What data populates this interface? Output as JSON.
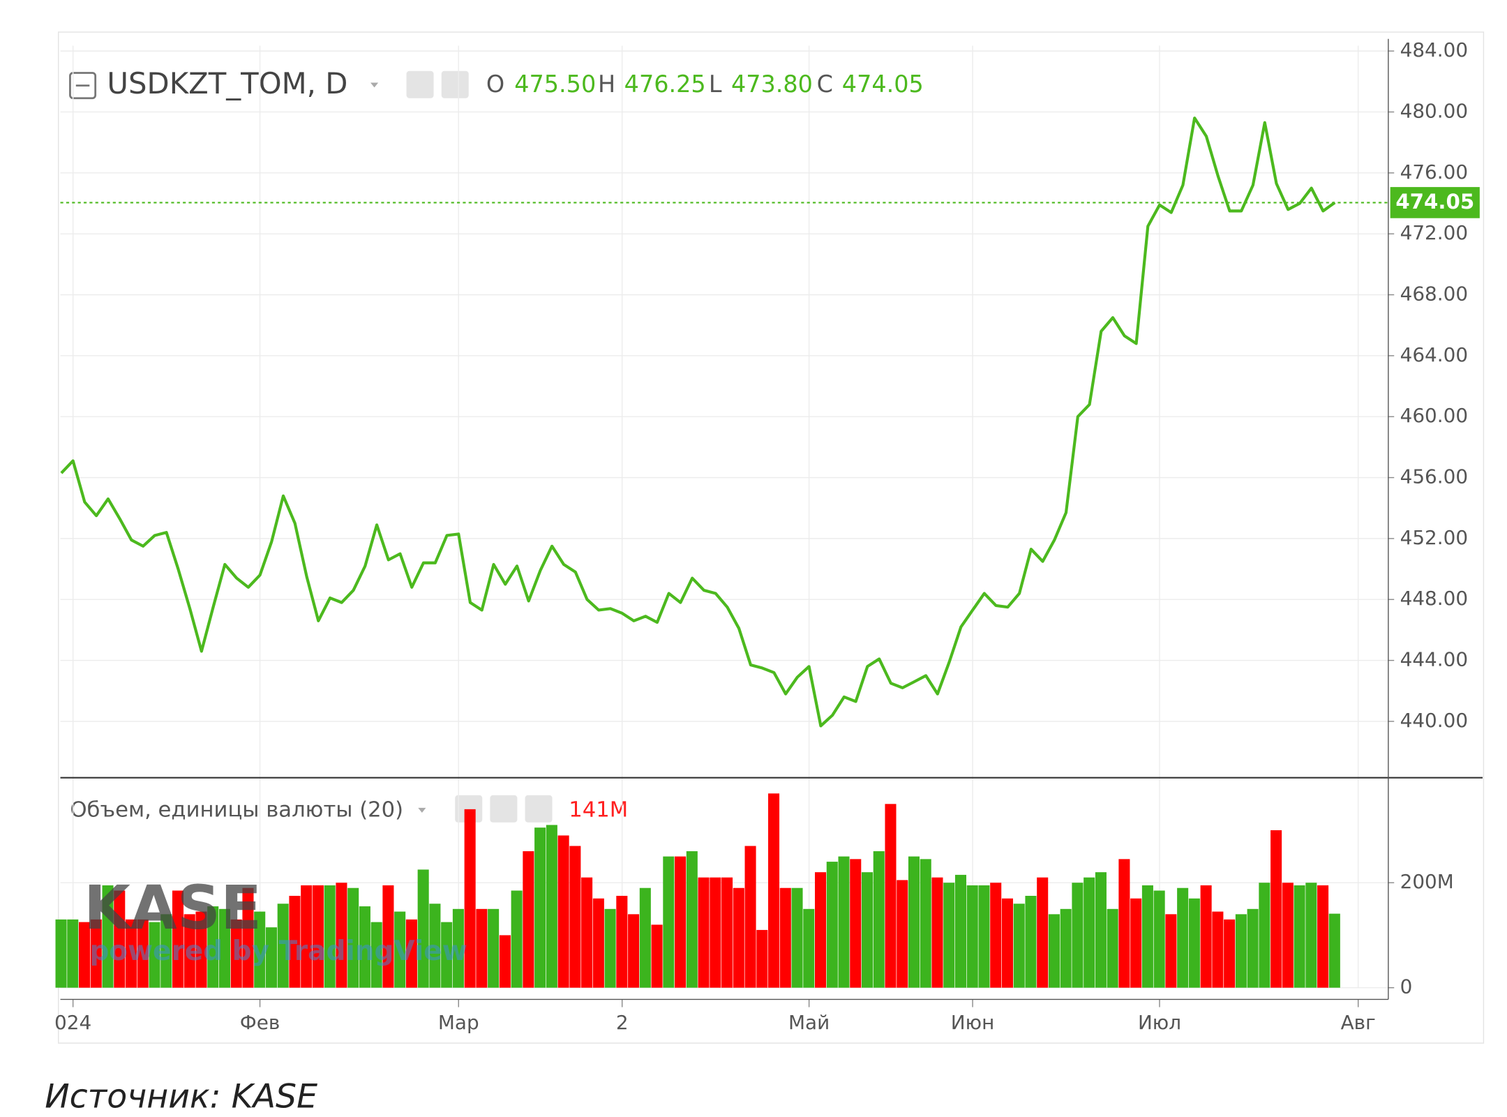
{
  "chart_data": [
    {
      "type": "line",
      "title": "USDKZT_TOM, D",
      "ohlc": [
        {
          "key": "O",
          "value": "475.50"
        },
        {
          "key": "H",
          "value": "476.25"
        },
        {
          "key": "L",
          "value": "473.80"
        },
        {
          "key": "C",
          "value": "474.05"
        }
      ],
      "color": "#4cb91e",
      "values": [
        456.3,
        457.1,
        454.4,
        453.5,
        454.6,
        453.3,
        451.9,
        451.5,
        452.2,
        452.4,
        450.0,
        447.4,
        444.6,
        447.5,
        450.3,
        449.4,
        448.8,
        449.6,
        451.8,
        454.8,
        453.0,
        449.5,
        446.6,
        448.1,
        447.8,
        448.6,
        450.2,
        452.9,
        450.6,
        451.0,
        448.8,
        450.4,
        450.4,
        452.2,
        452.3,
        447.8,
        447.3,
        450.3,
        449.0,
        450.2,
        447.9,
        449.9,
        451.5,
        450.3,
        449.8,
        448.0,
        447.3,
        447.4,
        447.1,
        446.6,
        446.9,
        446.5,
        448.4,
        447.8,
        449.4,
        448.6,
        448.4,
        447.5,
        446.1,
        443.7,
        443.5,
        443.2,
        441.8,
        442.9,
        443.6,
        439.7,
        440.4,
        441.6,
        441.3,
        443.6,
        444.1,
        442.5,
        442.2,
        442.6,
        443.0,
        441.8,
        443.9,
        446.2,
        447.3,
        448.4,
        447.6,
        447.5,
        448.4,
        451.3,
        450.5,
        451.9,
        453.7,
        460.0,
        460.8,
        465.6,
        466.5,
        465.3,
        464.8,
        472.5,
        473.9,
        473.4,
        475.2,
        479.6,
        478.4,
        475.8,
        473.5,
        473.5,
        475.2,
        479.3,
        475.3,
        473.6,
        474.0,
        475.0,
        473.5,
        474.05,
        null,
        null
      ],
      "price_line": {
        "value": 474.05,
        "label": "474.05"
      },
      "ylim": [
        436.3,
        484.35
      ],
      "yticks": [
        {
          "value": 440,
          "label": "440.00"
        },
        {
          "value": 444,
          "label": "444.00"
        },
        {
          "value": 448,
          "label": "448.00"
        },
        {
          "value": 452,
          "label": "452.00"
        },
        {
          "value": 456,
          "label": "456.00"
        },
        {
          "value": 460,
          "label": "460.00"
        },
        {
          "value": 464,
          "label": "464.00"
        },
        {
          "value": 468,
          "label": "468.00"
        },
        {
          "value": 472,
          "label": "472.00"
        },
        {
          "value": 476,
          "label": "476.00"
        },
        {
          "value": 480,
          "label": "480.00"
        },
        {
          "value": 484,
          "label": "484.00"
        }
      ],
      "grid": true
    },
    {
      "type": "bar",
      "title": "Объем, единицы валюты (20)",
      "last_value": {
        "value": 141,
        "label": "141M"
      },
      "up_color": "#3cb41e",
      "down_color": "#ff0000",
      "categories": [
        null,
        "024",
        null,
        null,
        null,
        null,
        null,
        null,
        null,
        null,
        null,
        null,
        null,
        null,
        null,
        null,
        null,
        "Фев",
        null,
        null,
        null,
        null,
        null,
        null,
        null,
        null,
        null,
        null,
        null,
        null,
        null,
        null,
        null,
        null,
        "Мар",
        null,
        null,
        null,
        null,
        null,
        null,
        null,
        null,
        null,
        null,
        null,
        null,
        null,
        "2",
        null,
        null,
        null,
        null,
        null,
        null,
        null,
        null,
        null,
        null,
        null,
        null,
        null,
        null,
        null,
        "Май",
        null,
        null,
        null,
        null,
        null,
        null,
        null,
        null,
        null,
        null,
        null,
        null,
        null,
        "Июн",
        null,
        null,
        null,
        null,
        null,
        null,
        null,
        null,
        null,
        null,
        null,
        null,
        null,
        null,
        null,
        "Июл",
        null,
        null,
        null,
        null,
        null,
        null,
        null,
        null,
        null,
        null,
        null,
        null,
        null,
        null,
        null,
        null,
        "Авг"
      ],
      "values": [
        130,
        130,
        125,
        130,
        195,
        185,
        130,
        130,
        125,
        140,
        185,
        140,
        145,
        155,
        150,
        130,
        190,
        145,
        115,
        160,
        175,
        195,
        195,
        195,
        200,
        190,
        155,
        125,
        195,
        145,
        130,
        225,
        160,
        125,
        150,
        340,
        150,
        150,
        100,
        185,
        260,
        305,
        310,
        290,
        270,
        210,
        170,
        150,
        175,
        140,
        190,
        120,
        250,
        250,
        260,
        210,
        210,
        210,
        190,
        270,
        110,
        370,
        190,
        190,
        150,
        220,
        240,
        250,
        245,
        220,
        260,
        350,
        205,
        250,
        245,
        210,
        200,
        215,
        195,
        195,
        200,
        170,
        160,
        175,
        210,
        140,
        150,
        200,
        210,
        220,
        150,
        245,
        170,
        195,
        185,
        140,
        190,
        170,
        195,
        145,
        130,
        140,
        150,
        200,
        300,
        200,
        195,
        200,
        195,
        141,
        null,
        null
      ],
      "ylim": [
        0,
        400
      ],
      "yticks": [
        0,
        {
          "value": 200,
          "label": "200M"
        }
      ],
      "grid": true
    }
  ],
  "watermark": {
    "logo": "KASE",
    "text": "powered by TradingView"
  },
  "source": "Источник: KASE"
}
